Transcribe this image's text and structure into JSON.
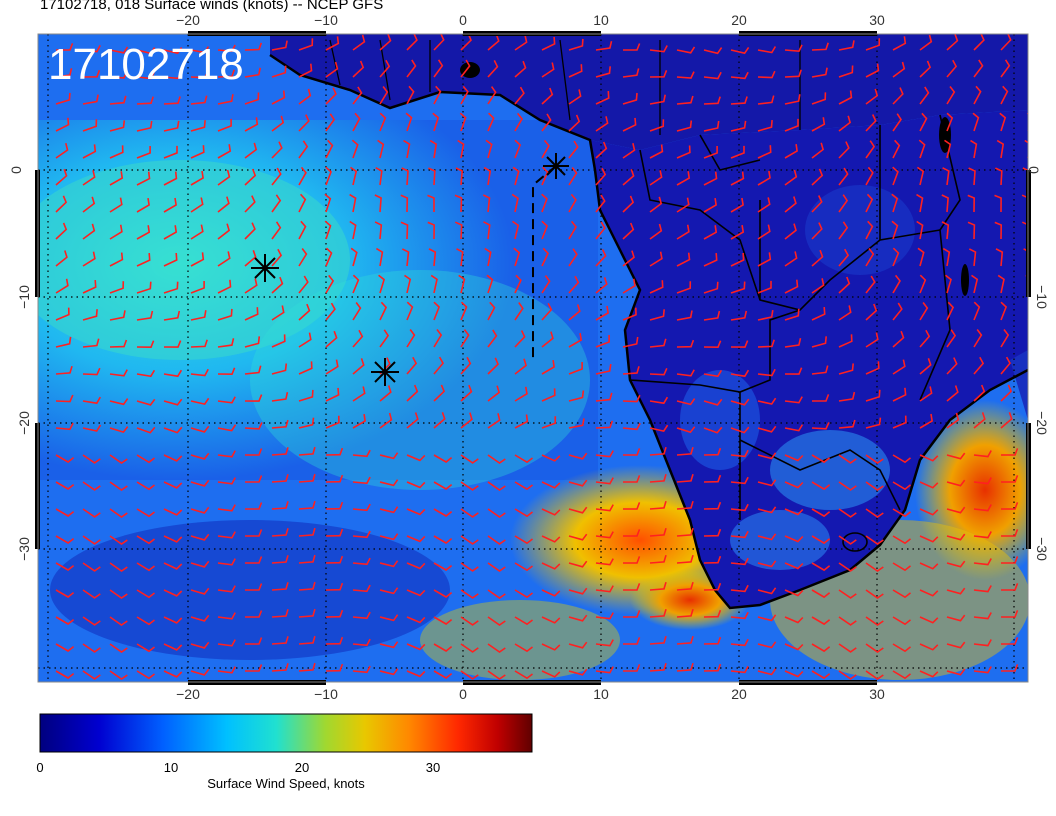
{
  "title": "17102718, 018 Surface winds (knots) -- NCEP GFS",
  "stamp": "17102718",
  "axes": {
    "lon_ticks": [
      "−20",
      "−10",
      "0",
      "10",
      "20",
      "30"
    ],
    "lat_ticks": [
      "0",
      "−10",
      "−20",
      "−30"
    ]
  },
  "colorbar": {
    "label": "Surface Wind Speed, knots",
    "ticks": [
      "0",
      "10",
      "20",
      "30"
    ],
    "colors": [
      "#00007f",
      "#0000cc",
      "#0050ff",
      "#00a0ff",
      "#00e0e0",
      "#40e0b0",
      "#b0d020",
      "#f0c000",
      "#ff8000",
      "#ff3000",
      "#c00000",
      "#600000"
    ]
  },
  "markers": {
    "count": 3,
    "icon": "asterisk-icon"
  },
  "colors": {
    "barbs": "#ff2020",
    "land": "#1018b0",
    "ocean": "#2a78f0"
  }
}
